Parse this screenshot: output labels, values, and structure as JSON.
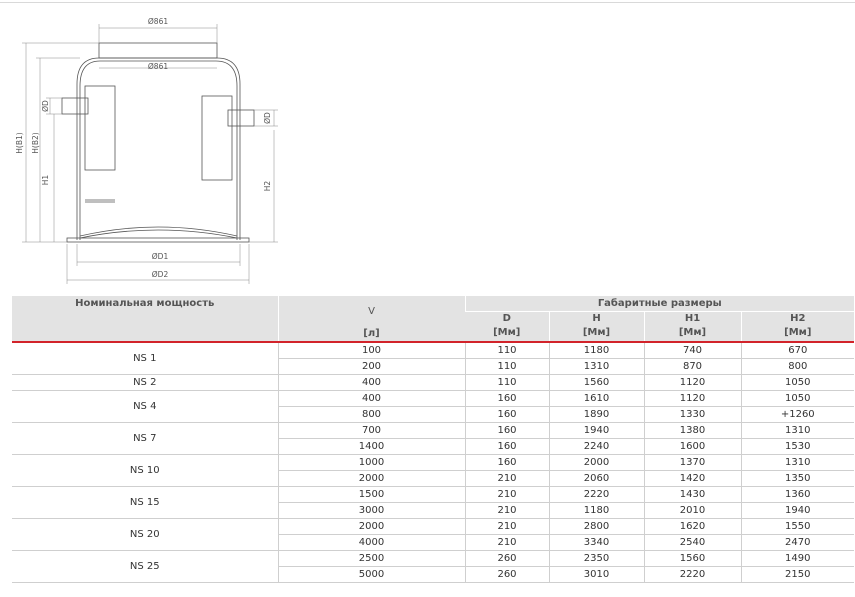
{
  "drawing": {
    "top_diameter": "Ø861",
    "inner_diameter": "Ø861",
    "pipe_d_left": "ØD",
    "pipe_d_right": "ØD",
    "height_b1": "H(B1)",
    "height_b2": "H(B2)",
    "h1": "H1",
    "h2": "H2",
    "base_d1": "ØD1",
    "base_d2": "ØD2"
  },
  "table": {
    "header_power": "Номинальная мощность",
    "header_v": "V",
    "header_v_unit": "[л]",
    "header_dims": "Габаритные размеры",
    "columns": [
      {
        "label": "D",
        "unit": "[Мм]"
      },
      {
        "label": "H",
        "unit": "[Мм]"
      },
      {
        "label": "H1",
        "unit": "[Мм]"
      },
      {
        "label": "H2",
        "unit": "[Мм]"
      }
    ],
    "groups": [
      {
        "model": "NS 1",
        "rows": [
          [
            "100",
            "110",
            "1180",
            "740",
            "670"
          ],
          [
            "200",
            "110",
            "1310",
            "870",
            "800"
          ]
        ]
      },
      {
        "model": "NS 2",
        "rows": [
          [
            "400",
            "110",
            "1560",
            "1120",
            "1050"
          ]
        ]
      },
      {
        "model": "NS 4",
        "rows": [
          [
            "400",
            "160",
            "1610",
            "1120",
            "1050"
          ],
          [
            "800",
            "160",
            "1890",
            "1330",
            "+1260"
          ]
        ]
      },
      {
        "model": "NS 7",
        "rows": [
          [
            "700",
            "160",
            "1940",
            "1380",
            "1310"
          ],
          [
            "1400",
            "160",
            "2240",
            "1600",
            "1530"
          ]
        ]
      },
      {
        "model": "NS 10",
        "rows": [
          [
            "1000",
            "160",
            "2000",
            "1370",
            "1310"
          ],
          [
            "2000",
            "210",
            "2060",
            "1420",
            "1350"
          ]
        ]
      },
      {
        "model": "NS 15",
        "rows": [
          [
            "1500",
            "210",
            "2220",
            "1430",
            "1360"
          ],
          [
            "3000",
            "210",
            "1180",
            "2010",
            "1940"
          ]
        ]
      },
      {
        "model": "NS 20",
        "rows": [
          [
            "2000",
            "210",
            "2800",
            "1620",
            "1550"
          ],
          [
            "4000",
            "210",
            "3340",
            "2540",
            "2470"
          ]
        ]
      },
      {
        "model": "NS 25",
        "rows": [
          [
            "2500",
            "260",
            "2350",
            "1560",
            "1490"
          ],
          [
            "5000",
            "260",
            "3010",
            "2220",
            "2150"
          ]
        ]
      }
    ]
  }
}
